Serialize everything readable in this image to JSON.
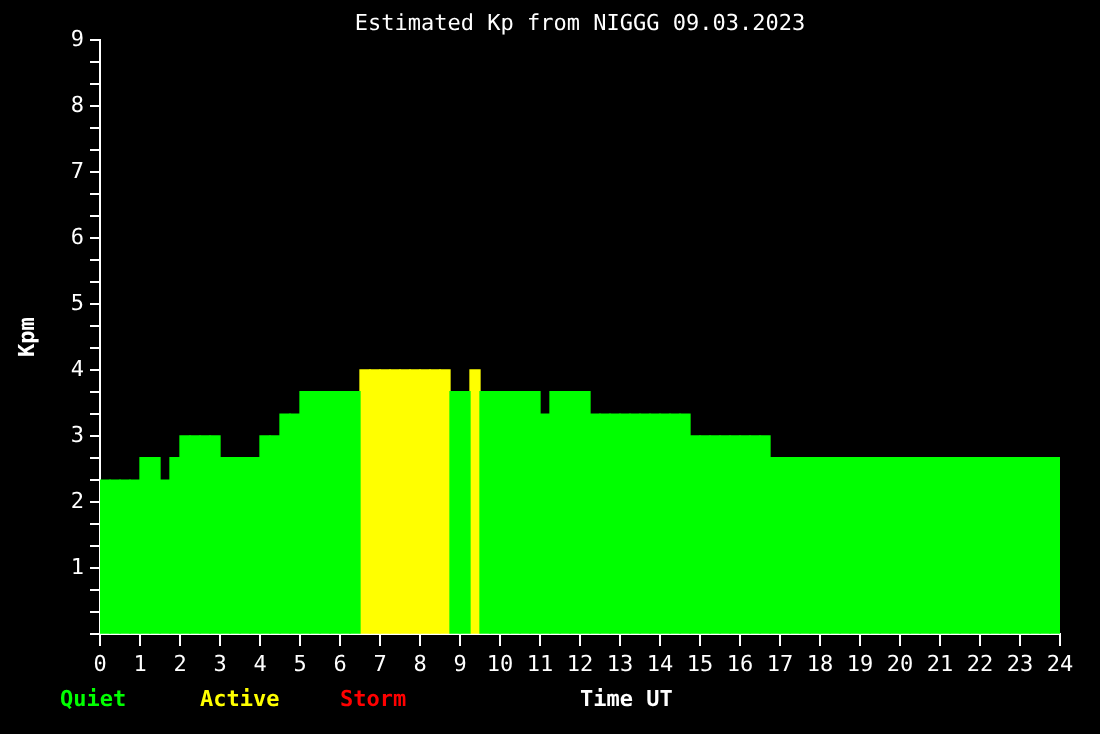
{
  "chart_data": {
    "type": "histogram",
    "title": "Estimated Kp from NIGGG 09.03.2023",
    "xlabel": "Time UT",
    "ylabel": "Kpm",
    "bins": [
      0,
      0.25,
      0.5,
      0.75,
      1,
      1.25,
      1.5,
      1.75,
      2,
      2.25,
      2.5,
      2.75,
      3,
      3.25,
      3.5,
      3.75,
      4,
      4.25,
      4.5,
      4.75,
      5,
      5.25,
      5.5,
      5.75,
      6,
      6.25,
      6.5,
      6.75,
      7,
      7.25,
      7.5,
      7.75,
      8,
      8.25,
      8.5,
      8.75,
      9,
      9.25,
      9.5,
      9.75,
      10,
      10.25,
      10.5,
      10.75,
      11,
      11.25,
      11.5,
      11.75,
      12,
      12.25,
      12.5,
      12.75,
      13,
      13.25,
      13.5,
      13.75,
      14,
      14.25,
      14.5,
      14.75,
      15,
      15.25,
      15.5,
      15.75,
      16,
      16.25,
      16.5,
      16.75,
      17,
      17.25,
      17.5,
      17.75,
      18,
      18.25,
      18.5,
      18.75,
      19,
      19.25,
      19.5,
      19.75,
      20,
      20.25,
      20.5,
      20.75,
      21,
      21.25,
      21.5,
      21.75,
      22,
      22.25,
      22.5,
      22.75,
      23,
      23.25,
      23.5,
      23.75,
      24
    ],
    "series": [
      {
        "name": "Quiet",
        "color": "#00ff00",
        "values": [
          2.33,
          2.33,
          2.33,
          2.33,
          2.67,
          2.67,
          2.33,
          2.67,
          3,
          3,
          3,
          3,
          2.67,
          2.67,
          2.67,
          2.67,
          3,
          3,
          3.33,
          3.33,
          3.67,
          3.67,
          3.67,
          3.67,
          3.67,
          3.67,
          null,
          null,
          null,
          null,
          null,
          null,
          null,
          null,
          null,
          3.67,
          3.67,
          null,
          3.67,
          3.67,
          3.67,
          3.67,
          3.67,
          3.67,
          3.33,
          3.67,
          3.67,
          3.67,
          3.67,
          3.33,
          3.33,
          3.33,
          3.33,
          3.33,
          3.33,
          3.33,
          3.33,
          3.33,
          3.33,
          3,
          3,
          3,
          3,
          3,
          3,
          3,
          3,
          2.67,
          2.67,
          2.67,
          2.67,
          2.67,
          2.67,
          2.67,
          2.67,
          2.67,
          2.67,
          2.67,
          2.67,
          2.67,
          2.67,
          2.67,
          2.67,
          2.67,
          2.67,
          2.67,
          2.67,
          2.67,
          2.67,
          2.67,
          2.67,
          2.67,
          2.67,
          2.67,
          2.67,
          2.67
        ]
      },
      {
        "name": "Active",
        "color": "#ffff00",
        "values": [
          null,
          null,
          null,
          null,
          null,
          null,
          null,
          null,
          null,
          null,
          null,
          null,
          null,
          null,
          null,
          null,
          null,
          null,
          null,
          null,
          null,
          null,
          null,
          null,
          null,
          null,
          4,
          4,
          4,
          4,
          4,
          4,
          4,
          4,
          4,
          null,
          null,
          4,
          null,
          null,
          null,
          null,
          null,
          null,
          null,
          null,
          null,
          null,
          null,
          null,
          null,
          null,
          null,
          null,
          null,
          null,
          null,
          null,
          null,
          null,
          null,
          null,
          null,
          null,
          null,
          null,
          null,
          null,
          null,
          null,
          null,
          null,
          null,
          null,
          null,
          null,
          null,
          null,
          null,
          null,
          null,
          null,
          null,
          null,
          null,
          null,
          null,
          null,
          null,
          null,
          null,
          null,
          null,
          null,
          null,
          null
        ]
      }
    ],
    "annotations": [
      "Storm"
    ],
    "xlim": [
      0,
      24
    ],
    "xticks": [
      0,
      1,
      2,
      3,
      4,
      5,
      6,
      7,
      8,
      9,
      10,
      11,
      12,
      13,
      14,
      15,
      16,
      17,
      18,
      19,
      20,
      21,
      22,
      23,
      24
    ],
    "ylim": [
      0,
      9
    ],
    "yticks": [
      {
        "value": 0,
        "label": null
      },
      {
        "value": 0.333,
        "label": null
      },
      {
        "value": 0.667,
        "label": null
      },
      1,
      {
        "value": 1.333,
        "label": null
      },
      {
        "value": 1.667,
        "label": null
      },
      2,
      {
        "value": 2.333,
        "label": null
      },
      {
        "value": 2.667,
        "label": null
      },
      3,
      {
        "value": 3.333,
        "label": null
      },
      {
        "value": 3.667,
        "label": null
      },
      4,
      {
        "value": 4.333,
        "label": null
      },
      {
        "value": 4.667,
        "label": null
      },
      5,
      {
        "value": 5.333,
        "label": null
      },
      {
        "value": 5.667,
        "label": null
      },
      6,
      {
        "value": 6.333,
        "label": null
      },
      {
        "value": 6.667,
        "label": null
      },
      7,
      {
        "value": 7.333,
        "label": null
      },
      {
        "value": 7.667,
        "label": null
      },
      8,
      {
        "value": 8.333,
        "label": null
      },
      {
        "value": 8.667,
        "label": null
      },
      9
    ],
    "grid": false,
    "legend": "bottom left"
  }
}
